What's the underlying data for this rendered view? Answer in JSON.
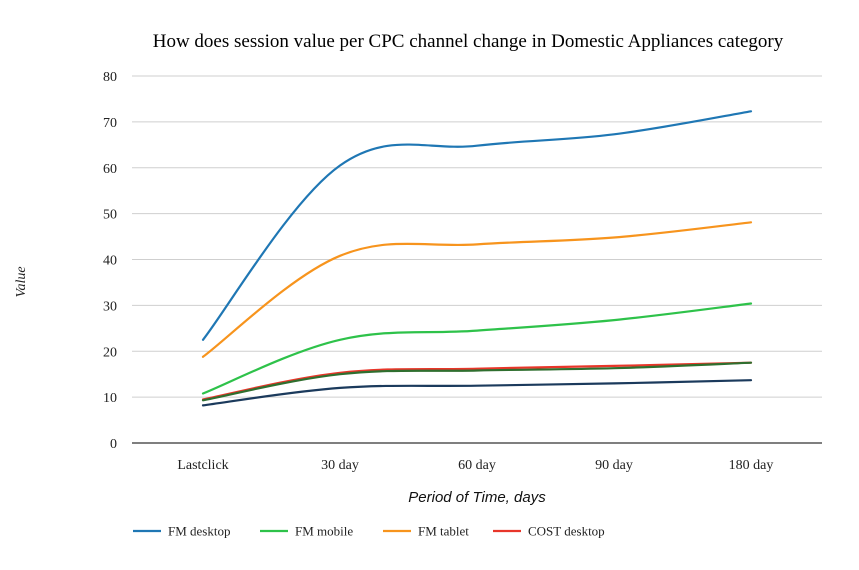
{
  "chart_data": {
    "type": "line",
    "title": "How does session value per CPC channel change in Domestic Appliances category",
    "xlabel": "Period of Time, days",
    "ylabel": "Value",
    "categories": [
      "Lastclick",
      "30 day",
      "60 day",
      "90 day",
      "180 day"
    ],
    "ylim": [
      0,
      80
    ],
    "yticks": [
      0,
      10,
      20,
      30,
      40,
      50,
      60,
      70,
      80
    ],
    "grid": true,
    "legend_position": "bottom",
    "series": [
      {
        "name": "FM desktop",
        "color": "#1f77b4",
        "values": [
          22.5,
          60.5,
          64.8,
          67.3,
          72.3
        ]
      },
      {
        "name": "FM mobile",
        "color": "#2ec24a",
        "values": [
          10.8,
          22.5,
          24.5,
          26.8,
          30.4
        ]
      },
      {
        "name": "FM tablet",
        "color": "#f7941d",
        "values": [
          18.8,
          40.8,
          43.3,
          44.8,
          48.1
        ]
      },
      {
        "name": "COST desktop",
        "color": "#e8362a",
        "values": [
          9.5,
          15.3,
          16.2,
          16.8,
          17.5
        ]
      },
      {
        "name": "",
        "color": "#2f6f2f",
        "values": [
          9.3,
          15.0,
          15.8,
          16.3,
          17.5
        ]
      },
      {
        "name": "",
        "color": "#1b3a5c",
        "values": [
          8.2,
          12.0,
          12.5,
          13.0,
          13.7
        ]
      }
    ]
  }
}
